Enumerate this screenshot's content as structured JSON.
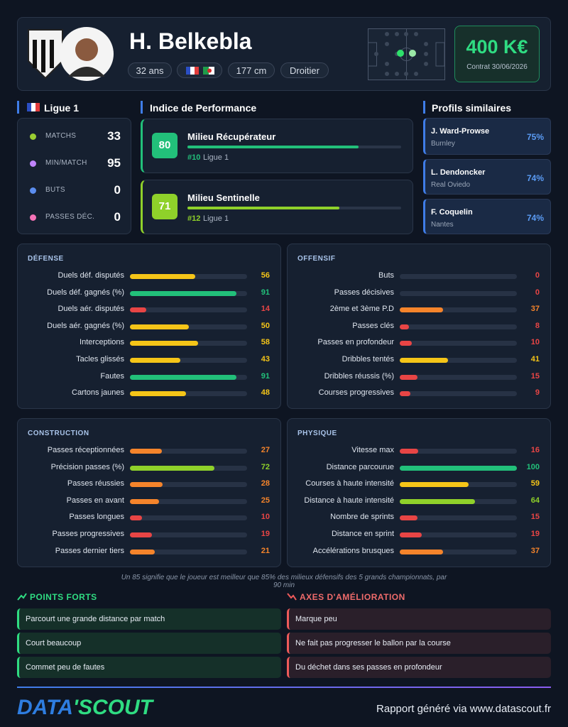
{
  "header": {
    "name": "H. Belkebla",
    "age": "32 ans",
    "height": "177 cm",
    "foot": "Droitier",
    "value": "400 K€",
    "contract": "Contrat 30/06/2026"
  },
  "league": {
    "name": "Ligue 1",
    "stats": [
      {
        "label": "MATCHS",
        "value": 33
      },
      {
        "label": "MIN/MATCH",
        "value": 95
      },
      {
        "label": "BUTS",
        "value": 0
      },
      {
        "label": "PASSES DÉC.",
        "value": 0
      }
    ]
  },
  "performance": {
    "title": "Indice de Performance",
    "items": [
      {
        "score": 80,
        "role": "Milieu Récupérateur",
        "rank": "#10",
        "league": "Ligue 1"
      },
      {
        "score": 71,
        "role": "Milieu Sentinelle",
        "rank": "#12",
        "league": "Ligue 1"
      }
    ]
  },
  "similar": {
    "title": "Profils similaires",
    "items": [
      {
        "name": "J. Ward-Prowse",
        "club": "Burnley",
        "match": "75%"
      },
      {
        "name": "L. Dendoncker",
        "club": "Real Oviedo",
        "match": "74%"
      },
      {
        "name": "F. Coquelin",
        "club": "Nantes",
        "match": "74%"
      }
    ]
  },
  "sections": [
    {
      "title": "DÉFENSE",
      "stats": [
        {
          "label": "Duels déf. disputés",
          "value": 56
        },
        {
          "label": "Duels déf. gagnés (%)",
          "value": 91
        },
        {
          "label": "Duels aér. disputés",
          "value": 14
        },
        {
          "label": "Duels aér. gagnés (%)",
          "value": 50
        },
        {
          "label": "Interceptions",
          "value": 58
        },
        {
          "label": "Tacles glissés",
          "value": 43
        },
        {
          "label": "Fautes",
          "value": 91
        },
        {
          "label": "Cartons jaunes",
          "value": 48
        }
      ]
    },
    {
      "title": "OFFENSIF",
      "stats": [
        {
          "label": "Buts",
          "value": 0
        },
        {
          "label": "Passes décisives",
          "value": 0
        },
        {
          "label": "2ème et 3ème P.D",
          "value": 37
        },
        {
          "label": "Passes clés",
          "value": 8
        },
        {
          "label": "Passes en profondeur",
          "value": 10
        },
        {
          "label": "Dribbles tentés",
          "value": 41
        },
        {
          "label": "Dribbles réussis (%)",
          "value": 15
        },
        {
          "label": "Courses progressives",
          "value": 9
        }
      ]
    },
    {
      "title": "CONSTRUCTION",
      "stats": [
        {
          "label": "Passes réceptionnées",
          "value": 27
        },
        {
          "label": "Précision passes (%)",
          "value": 72
        },
        {
          "label": "Passes réussies",
          "value": 28
        },
        {
          "label": "Passes en avant",
          "value": 25
        },
        {
          "label": "Passes longues",
          "value": 10
        },
        {
          "label": "Passes progressives",
          "value": 19
        },
        {
          "label": "Passes dernier tiers",
          "value": 21
        }
      ]
    },
    {
      "title": "PHYSIQUE",
      "stats": [
        {
          "label": "Vitesse max",
          "value": 16
        },
        {
          "label": "Distance parcourue",
          "value": 100
        },
        {
          "label": "Courses à haute intensité",
          "value": 59
        },
        {
          "label": "Distance à haute intensité",
          "value": 64
        },
        {
          "label": "Nombre de sprints",
          "value": 15
        },
        {
          "label": "Distance en sprint",
          "value": 19
        },
        {
          "label": "Accélérations brusques",
          "value": 37
        }
      ]
    }
  ],
  "note": "Un 85 signifie que le joueur est meilleur que 85% des milieux défensifs des 5 grands championnats, par 90 min",
  "strengths": {
    "title": "POINTS FORTS",
    "items": [
      "Parcourt une grande distance par match",
      "Court beaucoup",
      "Commet peu de fautes"
    ]
  },
  "improvements": {
    "title": "AXES D'AMÉLIORATION",
    "items": [
      "Marque peu",
      "Ne fait pas progresser le ballon par la course",
      "Du déchet dans ses passes en profondeur"
    ]
  },
  "footer": {
    "brand_left": "DATA",
    "brand_right": "'SCOUT",
    "text": "Rapport généré via www.datascout.fr"
  }
}
